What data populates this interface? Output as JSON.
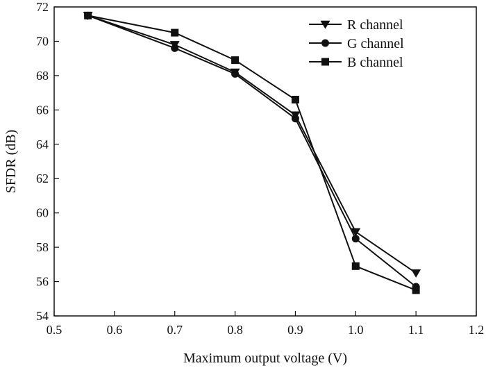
{
  "chart_data": {
    "type": "line",
    "title": "",
    "xlabel": "Maximum output voltage (V)",
    "ylabel": "SFDR (dB)",
    "xlim": [
      0.5,
      1.2
    ],
    "ylim": [
      54,
      72
    ],
    "xticks": [
      0.5,
      0.6,
      0.7,
      0.8,
      0.9,
      1.0,
      1.1,
      1.2
    ],
    "xtick_labels": [
      "0.5",
      "0.6",
      "0.7",
      "0.8",
      "0.9",
      "1.0",
      "1.1",
      "1.2"
    ],
    "yticks": [
      54,
      56,
      58,
      60,
      62,
      64,
      66,
      68,
      70,
      72
    ],
    "ytick_labels": [
      "54",
      "56",
      "58",
      "60",
      "62",
      "64",
      "66",
      "68",
      "70",
      "72"
    ],
    "grid": false,
    "legend_position": "top-right",
    "x": [
      0.556,
      0.7,
      0.8,
      0.9,
      1.0,
      1.1
    ],
    "series": [
      {
        "name": "R channel",
        "marker": "triangle-down",
        "color": "#111111",
        "values": [
          71.5,
          69.8,
          68.2,
          65.7,
          58.9,
          56.5
        ]
      },
      {
        "name": "G channel",
        "marker": "circle",
        "color": "#111111",
        "values": [
          71.5,
          69.6,
          68.1,
          65.5,
          58.5,
          55.7
        ]
      },
      {
        "name": "B channel",
        "marker": "square",
        "color": "#111111",
        "values": [
          71.5,
          70.5,
          68.9,
          66.6,
          56.9,
          55.5
        ]
      }
    ]
  }
}
